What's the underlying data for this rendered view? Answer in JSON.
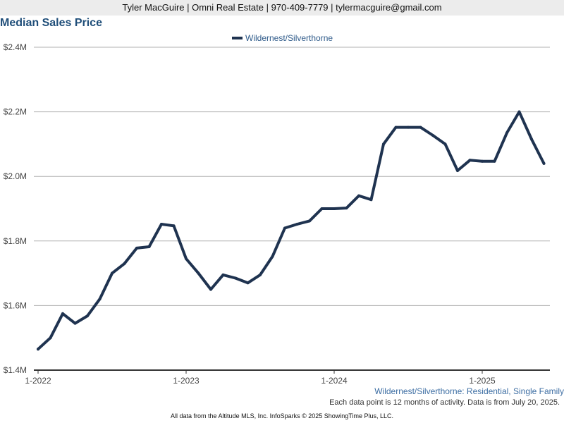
{
  "header": {
    "contact": "Tyler MacGuire | Omni Real Estate | 970-409-7779 | tylermacguire@gmail.com"
  },
  "footer": {
    "series_desc": "Wildernest/Silverthorne: Residential, Single Family",
    "note": "Each data point is 12 months of activity. Data is from July 20, 2025.",
    "source": "All data from the Altitude MLS, Inc. InfoSparks © 2025 ShowingTime Plus, LLC."
  },
  "colors": {
    "line": "#1f3350",
    "grid": "#b0b0b0",
    "title": "#1f4e79"
  },
  "chart_data": {
    "type": "line",
    "title": "Median Sales Price",
    "xlabel": "",
    "ylabel": "",
    "ylim": [
      1400000,
      2400000
    ],
    "yticks": [
      {
        "value": 1400000,
        "label": "$1.4M"
      },
      {
        "value": 1600000,
        "label": "$1.6M"
      },
      {
        "value": 1800000,
        "label": "$1.8M"
      },
      {
        "value": 2000000,
        "label": "$2.0M"
      },
      {
        "value": 2200000,
        "label": "$2.2M"
      },
      {
        "value": 2400000,
        "label": "$2.4M"
      }
    ],
    "xticks": [
      {
        "value": "2022-01",
        "label": "1-2022"
      },
      {
        "value": "2023-01",
        "label": "1-2023"
      },
      {
        "value": "2024-01",
        "label": "1-2024"
      },
      {
        "value": "2025-01",
        "label": "1-2025"
      }
    ],
    "grid": true,
    "legend_position": "top-center",
    "x": [
      "2022-01",
      "2022-02",
      "2022-03",
      "2022-04",
      "2022-05",
      "2022-06",
      "2022-07",
      "2022-08",
      "2022-09",
      "2022-10",
      "2022-11",
      "2022-12",
      "2023-01",
      "2023-02",
      "2023-03",
      "2023-04",
      "2023-05",
      "2023-06",
      "2023-07",
      "2023-08",
      "2023-09",
      "2023-10",
      "2023-11",
      "2023-12",
      "2024-01",
      "2024-02",
      "2024-03",
      "2024-04",
      "2024-05",
      "2024-06",
      "2024-07",
      "2024-08",
      "2024-09",
      "2024-10",
      "2024-11",
      "2024-12",
      "2025-01",
      "2025-02",
      "2025-03",
      "2025-04",
      "2025-05",
      "2025-06"
    ],
    "series": [
      {
        "name": "Wildernest/Silverthorne",
        "values": [
          1465000,
          1500000,
          1575000,
          1545000,
          1568000,
          1620000,
          1700000,
          1730000,
          1778000,
          1782000,
          1852000,
          1847000,
          1745000,
          1700000,
          1650000,
          1695000,
          1685000,
          1670000,
          1695000,
          1752000,
          1840000,
          1852000,
          1862000,
          1900000,
          1900000,
          1902000,
          1940000,
          1928000,
          2100000,
          2152000,
          2152000,
          2152000,
          2127000,
          2100000,
          2018000,
          2050000,
          2047000,
          2047000,
          2135000,
          2200000,
          2115000,
          2040000
        ]
      }
    ]
  }
}
